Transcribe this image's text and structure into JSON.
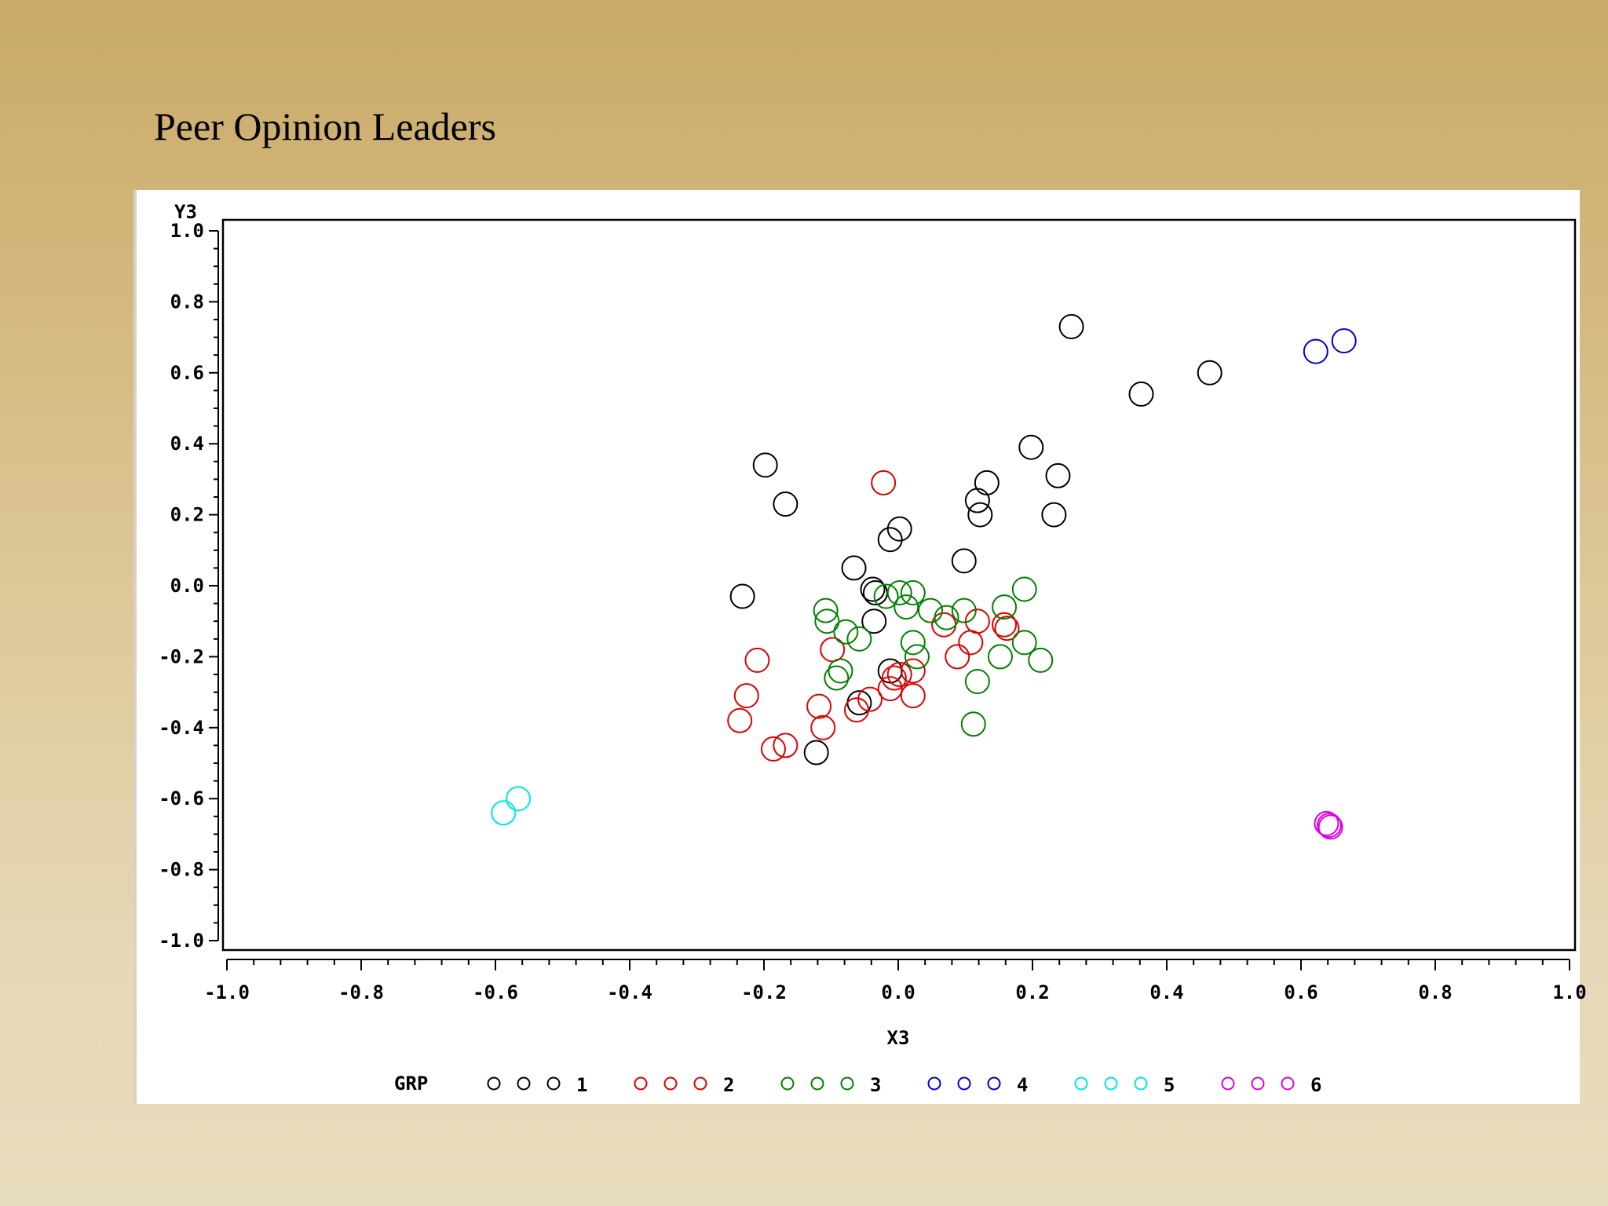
{
  "slide": {
    "title": "Peer Opinion Leaders"
  },
  "chart_data": {
    "type": "scatter",
    "title": "Peer Opinion Leaders",
    "xlabel": "X3",
    "ylabel": "Y3",
    "xlim": [
      -1.0,
      1.0
    ],
    "ylim": [
      -1.0,
      1.0
    ],
    "x_ticks": [
      -1.0,
      -0.8,
      -0.6,
      -0.4,
      -0.2,
      0.0,
      0.2,
      0.4,
      0.6,
      0.8,
      1.0
    ],
    "y_ticks": [
      -1.0,
      -0.8,
      -0.6,
      -0.4,
      -0.2,
      0.0,
      0.2,
      0.4,
      0.6,
      0.8,
      1.0
    ],
    "x_tick_labels": [
      "-1.0",
      "-0.8",
      "-0.6",
      "-0.4",
      "-0.2",
      "0.0",
      "0.2",
      "0.4",
      "0.6",
      "0.8",
      "1.0"
    ],
    "y_tick_labels": [
      "-1.0",
      "-0.8",
      "-0.6",
      "-0.4",
      "-0.2",
      "0.0",
      "0.2",
      "0.4",
      "0.6",
      "0.8",
      "1.0"
    ],
    "marker": "circle",
    "legend": {
      "title": "GRP",
      "position": "bottom"
    },
    "series": [
      {
        "name": "1",
        "color": "#000000",
        "points": [
          [
            0.258,
            0.73
          ],
          [
            0.362,
            0.54
          ],
          [
            0.464,
            0.6
          ],
          [
            0.198,
            0.39
          ],
          [
            0.238,
            0.31
          ],
          [
            0.132,
            0.29
          ],
          [
            0.118,
            0.24
          ],
          [
            0.122,
            0.2
          ],
          [
            0.232,
            0.2
          ],
          [
            0.002,
            0.16
          ],
          [
            -0.012,
            0.13
          ],
          [
            0.098,
            0.07
          ],
          [
            -0.066,
            0.05
          ],
          [
            -0.198,
            0.34
          ],
          [
            -0.168,
            0.23
          ],
          [
            -0.232,
            -0.03
          ],
          [
            -0.038,
            -0.01
          ],
          [
            -0.034,
            -0.02
          ],
          [
            -0.036,
            -0.1
          ],
          [
            -0.012,
            -0.24
          ],
          [
            -0.058,
            -0.33
          ],
          [
            -0.122,
            -0.47
          ]
        ]
      },
      {
        "name": "2",
        "color": "#e00000",
        "points": [
          [
            -0.022,
            0.29
          ],
          [
            -0.21,
            -0.21
          ],
          [
            -0.226,
            -0.31
          ],
          [
            -0.236,
            -0.38
          ],
          [
            -0.186,
            -0.46
          ],
          [
            -0.168,
            -0.45
          ],
          [
            -0.118,
            -0.34
          ],
          [
            -0.112,
            -0.4
          ],
          [
            -0.098,
            -0.18
          ],
          [
            -0.062,
            -0.35
          ],
          [
            -0.042,
            -0.32
          ],
          [
            -0.012,
            -0.29
          ],
          [
            -0.006,
            -0.26
          ],
          [
            0.002,
            -0.25
          ],
          [
            0.022,
            -0.24
          ],
          [
            0.022,
            -0.31
          ],
          [
            0.068,
            -0.11
          ],
          [
            0.088,
            -0.2
          ],
          [
            0.108,
            -0.16
          ],
          [
            0.118,
            -0.1
          ],
          [
            0.158,
            -0.11
          ],
          [
            0.162,
            -0.12
          ]
        ]
      },
      {
        "name": "3",
        "color": "#008000",
        "points": [
          [
            -0.108,
            -0.07
          ],
          [
            -0.106,
            -0.1
          ],
          [
            -0.078,
            -0.13
          ],
          [
            -0.058,
            -0.15
          ],
          [
            -0.086,
            -0.24
          ],
          [
            -0.092,
            -0.26
          ],
          [
            -0.018,
            -0.03
          ],
          [
            0.002,
            -0.02
          ],
          [
            0.022,
            -0.02
          ],
          [
            0.012,
            -0.06
          ],
          [
            0.048,
            -0.07
          ],
          [
            0.072,
            -0.09
          ],
          [
            0.098,
            -0.07
          ],
          [
            0.158,
            -0.06
          ],
          [
            0.188,
            -0.01
          ],
          [
            0.022,
            -0.16
          ],
          [
            0.028,
            -0.2
          ],
          [
            0.118,
            -0.27
          ],
          [
            0.152,
            -0.2
          ],
          [
            0.188,
            -0.16
          ],
          [
            0.212,
            -0.21
          ],
          [
            0.112,
            -0.39
          ]
        ]
      },
      {
        "name": "4",
        "color": "#0000d0",
        "points": [
          [
            0.622,
            0.66
          ],
          [
            0.664,
            0.69
          ]
        ]
      },
      {
        "name": "5",
        "color": "#00e5e5",
        "points": [
          [
            -0.588,
            -0.64
          ],
          [
            -0.566,
            -0.6
          ]
        ]
      },
      {
        "name": "6",
        "color": "#e000e0",
        "points": [
          [
            0.638,
            -0.67
          ],
          [
            0.644,
            -0.68
          ],
          [
            0.642,
            -0.675
          ]
        ]
      }
    ]
  }
}
